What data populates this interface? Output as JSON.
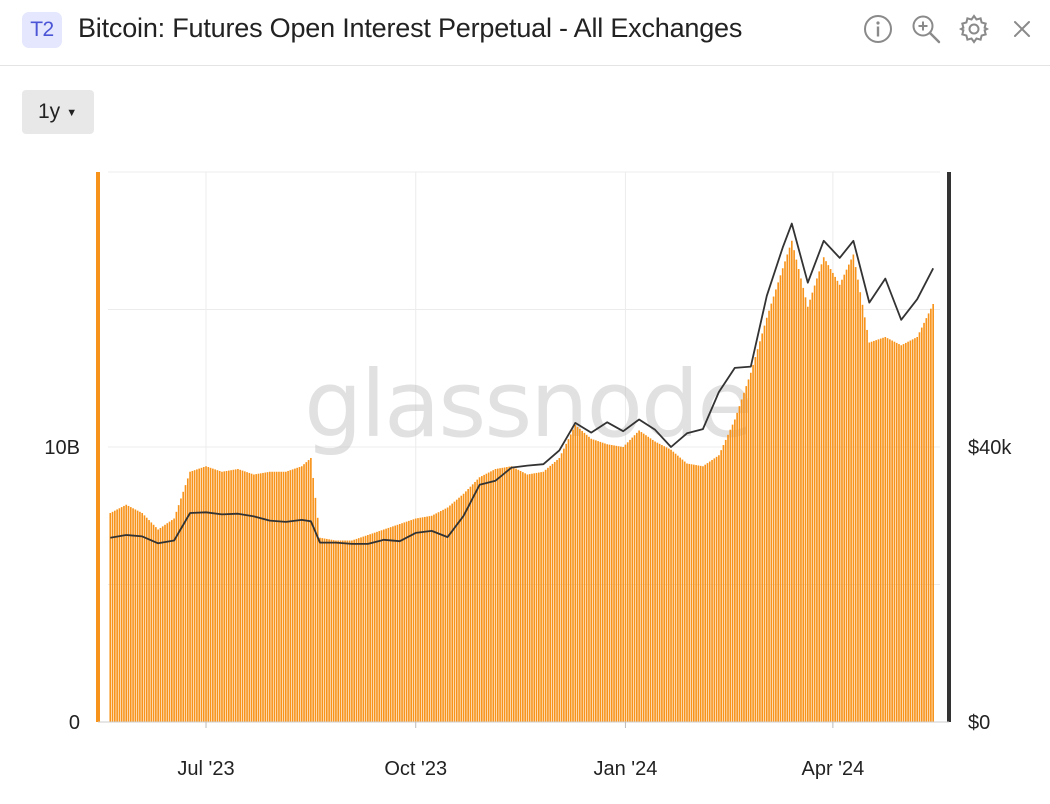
{
  "header": {
    "badge": "T2",
    "title": "Bitcoin: Futures Open Interest Perpetual - All Exchanges",
    "icons": [
      "info-icon",
      "zoom-in-icon",
      "gear-icon",
      "close-icon"
    ]
  },
  "controls": {
    "range_label": "1y"
  },
  "watermark": "glassnode",
  "colors": {
    "bars": "#f7931a",
    "price_line": "#333333",
    "badge_bg": "#e4e7fd",
    "badge_text": "#4b55d6"
  },
  "chart_data": {
    "type": "bar",
    "title": "Bitcoin: Futures Open Interest Perpetual - All Exchanges",
    "x_start": "2023-05-19",
    "x_end": "2024-05-18",
    "x_ticks": [
      {
        "label": "Jul '23",
        "date": "2023-07-01"
      },
      {
        "label": "Oct '23",
        "date": "2023-10-01"
      },
      {
        "label": "Jan '24",
        "date": "2024-01-01"
      },
      {
        "label": "Apr '24",
        "date": "2024-04-01"
      }
    ],
    "y_left": {
      "ticks": [
        {
          "label": "0",
          "value": 0
        },
        {
          "label": "10B",
          "value": 10000000000
        }
      ],
      "range": [
        0,
        20000000000
      ]
    },
    "y_right": {
      "ticks": [
        {
          "label": "$0",
          "value": 0
        },
        {
          "label": "$40k",
          "value": 40000
        }
      ],
      "range": [
        0,
        80000
      ]
    },
    "grid": true,
    "series": [
      {
        "kind": "bar",
        "axis": "left",
        "color": "#f7931a",
        "points": [
          [
            "2023-05-20",
            7600000000.0
          ],
          [
            "2023-05-27",
            7900000000.0
          ],
          [
            "2023-06-03",
            7600000000.0
          ],
          [
            "2023-06-10",
            7000000000.0
          ],
          [
            "2023-06-17",
            7400000000.0
          ],
          [
            "2023-06-24",
            9100000000.0
          ],
          [
            "2023-07-01",
            9300000000.0
          ],
          [
            "2023-07-08",
            9100000000.0
          ],
          [
            "2023-07-15",
            9200000000.0
          ],
          [
            "2023-07-22",
            9000000000.0
          ],
          [
            "2023-07-29",
            9100000000.0
          ],
          [
            "2023-08-05",
            9100000000.0
          ],
          [
            "2023-08-12",
            9300000000.0
          ],
          [
            "2023-08-16",
            9600000000.0
          ],
          [
            "2023-08-20",
            6700000000.0
          ],
          [
            "2023-08-27",
            6600000000.0
          ],
          [
            "2023-09-03",
            6600000000.0
          ],
          [
            "2023-09-10",
            6800000000.0
          ],
          [
            "2023-09-17",
            7000000000.0
          ],
          [
            "2023-09-24",
            7200000000.0
          ],
          [
            "2023-10-01",
            7400000000.0
          ],
          [
            "2023-10-08",
            7500000000.0
          ],
          [
            "2023-10-15",
            7800000000.0
          ],
          [
            "2023-10-22",
            8300000000.0
          ],
          [
            "2023-10-29",
            8900000000.0
          ],
          [
            "2023-11-05",
            9200000000.0
          ],
          [
            "2023-11-12",
            9300000000.0
          ],
          [
            "2023-11-19",
            9000000000.0
          ],
          [
            "2023-11-26",
            9100000000.0
          ],
          [
            "2023-12-03",
            9600000000.0
          ],
          [
            "2023-12-10",
            10800000000.0
          ],
          [
            "2023-12-17",
            10300000000.0
          ],
          [
            "2023-12-24",
            10100000000.0
          ],
          [
            "2023-12-31",
            10000000000.0
          ],
          [
            "2024-01-07",
            10600000000.0
          ],
          [
            "2024-01-14",
            10200000000.0
          ],
          [
            "2024-01-21",
            9900000000.0
          ],
          [
            "2024-01-28",
            9400000000.0
          ],
          [
            "2024-02-04",
            9300000000.0
          ],
          [
            "2024-02-11",
            9700000000.0
          ],
          [
            "2024-02-18",
            11000000000.0
          ],
          [
            "2024-02-25",
            12700000000.0
          ],
          [
            "2024-03-03",
            14700000000.0
          ],
          [
            "2024-03-10",
            16500000000.0
          ],
          [
            "2024-03-14",
            17500000000.0
          ],
          [
            "2024-03-21",
            15100000000.0
          ],
          [
            "2024-03-28",
            16900000000.0
          ],
          [
            "2024-04-04",
            15900000000.0
          ],
          [
            "2024-04-10",
            17000000000.0
          ],
          [
            "2024-04-17",
            13800000000.0
          ],
          [
            "2024-04-24",
            14000000000.0
          ],
          [
            "2024-05-01",
            13700000000.0
          ],
          [
            "2024-05-08",
            14000000000.0
          ],
          [
            "2024-05-15",
            15200000000.0
          ]
        ]
      },
      {
        "kind": "line",
        "axis": "right",
        "color": "#333333",
        "points": [
          [
            "2023-05-20",
            26800
          ],
          [
            "2023-05-27",
            27200
          ],
          [
            "2023-06-03",
            27000
          ],
          [
            "2023-06-10",
            26000
          ],
          [
            "2023-06-17",
            26400
          ],
          [
            "2023-06-24",
            30400
          ],
          [
            "2023-07-01",
            30500
          ],
          [
            "2023-07-08",
            30200
          ],
          [
            "2023-07-15",
            30300
          ],
          [
            "2023-07-22",
            29900
          ],
          [
            "2023-07-29",
            29300
          ],
          [
            "2023-08-05",
            29100
          ],
          [
            "2023-08-12",
            29400
          ],
          [
            "2023-08-16",
            29200
          ],
          [
            "2023-08-20",
            26100
          ],
          [
            "2023-08-27",
            26100
          ],
          [
            "2023-09-03",
            25900
          ],
          [
            "2023-09-10",
            25900
          ],
          [
            "2023-09-17",
            26500
          ],
          [
            "2023-09-24",
            26300
          ],
          [
            "2023-10-01",
            27500
          ],
          [
            "2023-10-08",
            27800
          ],
          [
            "2023-10-15",
            26900
          ],
          [
            "2023-10-22",
            30000
          ],
          [
            "2023-10-29",
            34500
          ],
          [
            "2023-11-05",
            35100
          ],
          [
            "2023-11-12",
            37000
          ],
          [
            "2023-11-19",
            37300
          ],
          [
            "2023-11-26",
            37500
          ],
          [
            "2023-12-03",
            39500
          ],
          [
            "2023-12-10",
            43500
          ],
          [
            "2023-12-17",
            42100
          ],
          [
            "2023-12-24",
            43600
          ],
          [
            "2023-12-31",
            42300
          ],
          [
            "2024-01-07",
            44000
          ],
          [
            "2024-01-14",
            42500
          ],
          [
            "2024-01-21",
            40000
          ],
          [
            "2024-01-28",
            42000
          ],
          [
            "2024-02-04",
            42600
          ],
          [
            "2024-02-11",
            48000
          ],
          [
            "2024-02-18",
            51500
          ],
          [
            "2024-02-25",
            51700
          ],
          [
            "2024-03-03",
            62000
          ],
          [
            "2024-03-10",
            69000
          ],
          [
            "2024-03-14",
            72500
          ],
          [
            "2024-03-21",
            63900
          ],
          [
            "2024-03-28",
            70000
          ],
          [
            "2024-04-04",
            67500
          ],
          [
            "2024-04-10",
            70000
          ],
          [
            "2024-04-17",
            61000
          ],
          [
            "2024-04-24",
            64500
          ],
          [
            "2024-05-01",
            58500
          ],
          [
            "2024-05-08",
            61500
          ],
          [
            "2024-05-15",
            66000
          ]
        ]
      }
    ]
  }
}
